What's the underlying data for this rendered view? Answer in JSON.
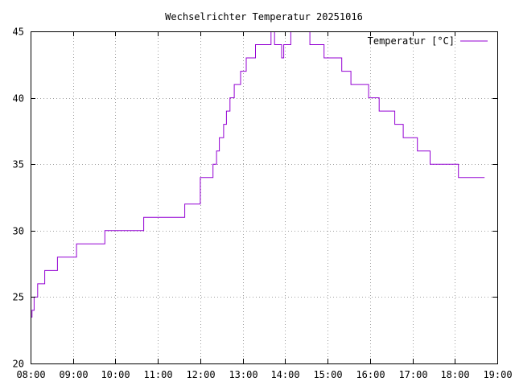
{
  "chart_data": {
    "type": "line",
    "title": "Wechselrichter Temperatur 20251016",
    "xlabel": "",
    "ylabel": "",
    "x_is_time": true,
    "xlim": [
      "08:00",
      "19:00"
    ],
    "ylim": [
      20,
      45
    ],
    "x_ticks": [
      "08:00",
      "09:00",
      "10:00",
      "11:00",
      "12:00",
      "13:00",
      "14:00",
      "15:00",
      "16:00",
      "17:00",
      "18:00",
      "19:00"
    ],
    "y_ticks": [
      20,
      25,
      30,
      35,
      40,
      45
    ],
    "grid": true,
    "legend_position": "top-right",
    "series": [
      {
        "name": "Temperatur [°C]",
        "color": "#9400d3",
        "step": true,
        "points": [
          [
            "08:00",
            23.5
          ],
          [
            "08:02",
            24
          ],
          [
            "08:05",
            25
          ],
          [
            "08:10",
            26
          ],
          [
            "08:20",
            27
          ],
          [
            "08:38",
            28
          ],
          [
            "09:05",
            29
          ],
          [
            "09:45",
            30
          ],
          [
            "10:40",
            31
          ],
          [
            "11:38",
            32
          ],
          [
            "12:00",
            34
          ],
          [
            "12:18",
            35
          ],
          [
            "12:23",
            36
          ],
          [
            "12:27",
            37
          ],
          [
            "12:33",
            38
          ],
          [
            "12:37",
            39
          ],
          [
            "12:42",
            40
          ],
          [
            "12:48",
            41
          ],
          [
            "12:57",
            42
          ],
          [
            "13:05",
            43
          ],
          [
            "13:18",
            44
          ],
          [
            "13:40",
            45
          ],
          [
            "13:45",
            44
          ],
          [
            "13:55",
            43
          ],
          [
            "13:58",
            44
          ],
          [
            "14:08",
            45
          ],
          [
            "14:35",
            44
          ],
          [
            "14:55",
            43
          ],
          [
            "15:20",
            42
          ],
          [
            "15:33",
            41
          ],
          [
            "15:58",
            40
          ],
          [
            "16:13",
            39
          ],
          [
            "16:35",
            38
          ],
          [
            "16:47",
            37
          ],
          [
            "17:07",
            36
          ],
          [
            "17:25",
            35
          ],
          [
            "18:05",
            34
          ],
          [
            "18:42",
            34
          ]
        ]
      }
    ]
  }
}
